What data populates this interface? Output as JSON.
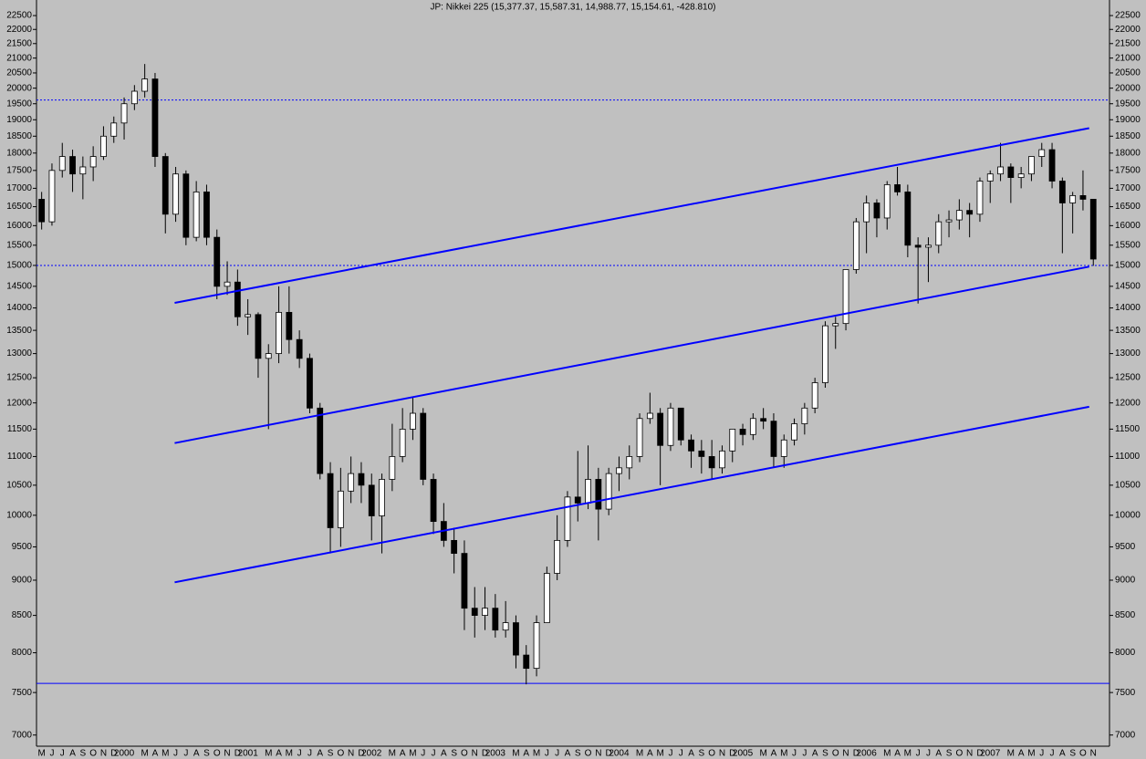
{
  "chart_data": {
    "type": "candlestick",
    "title": "JP: Nikkei 225 (15,377.37, 15,587.31, 14,988.77, 15,154.61, -428.810)",
    "log_scale": true,
    "grid": false,
    "up_color": "#ffffff",
    "down_color": "#000000",
    "line_color": "#0000ff",
    "ylim": [
      6874,
      23076
    ],
    "yticks": [
      7000,
      7500,
      8000,
      8500,
      9000,
      9500,
      10000,
      10500,
      11000,
      11500,
      12000,
      12500,
      13000,
      13500,
      14000,
      14500,
      15000,
      15500,
      16000,
      16500,
      17000,
      17500,
      18000,
      18500,
      19000,
      19500,
      20000,
      20500,
      21000,
      21500,
      22000,
      22500
    ],
    "categories": [
      "M",
      "J",
      "J",
      "A",
      "S",
      "O",
      "N",
      "D",
      "2000",
      null,
      "M",
      "A",
      "M",
      "J",
      "J",
      "A",
      "S",
      "O",
      "N",
      "D",
      "2001",
      null,
      "M",
      "A",
      "M",
      "J",
      "J",
      "A",
      "S",
      "O",
      "N",
      "D",
      "2002",
      null,
      "M",
      "A",
      "M",
      "J",
      "J",
      "A",
      "S",
      "O",
      "N",
      "D",
      "2003",
      null,
      "M",
      "A",
      "M",
      "J",
      "J",
      "A",
      "S",
      "O",
      "N",
      "D",
      "2004",
      null,
      "M",
      "A",
      "M",
      "J",
      "J",
      "A",
      "S",
      "O",
      "N",
      "D",
      "2005",
      null,
      "M",
      "A",
      "M",
      "J",
      "J",
      "A",
      "S",
      "O",
      "N",
      "D",
      "2006",
      null,
      "M",
      "A",
      "M",
      "J",
      "J",
      "A",
      "S",
      "O",
      "N",
      "D",
      "2007",
      null,
      "M",
      "A",
      "M",
      "J",
      "J",
      "A",
      "S",
      "O",
      "N"
    ],
    "open": [
      16700,
      16100,
      17500,
      17900,
      17400,
      17600,
      17900,
      18500,
      18900,
      19500,
      19900,
      20300,
      17900,
      16300,
      17400,
      15700,
      16900,
      15700,
      14500,
      14600,
      13800,
      13850,
      12900,
      13000,
      13900,
      13300,
      12900,
      11900,
      10700,
      9800,
      10400,
      10700,
      10500,
      9990,
      10600,
      11000,
      11500,
      11800,
      10600,
      9900,
      9600,
      9400,
      8600,
      8500,
      8600,
      8300,
      8400,
      7970,
      7800,
      8400,
      9100,
      9600,
      10300,
      10200,
      10600,
      10100,
      10700,
      10800,
      11000,
      11700,
      11800,
      11200,
      11900,
      11300,
      11100,
      11000,
      10800,
      11100,
      11500,
      11400,
      11700,
      11650,
      11000,
      11300,
      11600,
      11900,
      12400,
      13600,
      13650,
      14900,
      16100,
      16600,
      16200,
      17100,
      16900,
      15500,
      15450,
      15500,
      16100,
      16150,
      16400,
      16300,
      17200,
      17400,
      17600,
      17300,
      17400,
      17900,
      18100,
      17200,
      16600,
      16800,
      16700
    ],
    "high": [
      16900,
      17700,
      18300,
      18100,
      17900,
      18200,
      18800,
      19100,
      19700,
      20100,
      20800,
      20500,
      18000,
      17600,
      17500,
      17200,
      17100,
      15900,
      15100,
      14900,
      14200,
      13900,
      13200,
      14500,
      14500,
      13500,
      13000,
      12000,
      10900,
      10800,
      11000,
      10900,
      10700,
      10700,
      11600,
      11900,
      12100,
      11900,
      10700,
      10200,
      9800,
      9600,
      8900,
      8900,
      8800,
      8700,
      8500,
      8100,
      8500,
      9200,
      10000,
      10400,
      11100,
      11200,
      10800,
      10800,
      11000,
      11200,
      11800,
      12200,
      11900,
      12000,
      11900,
      11400,
      11300,
      11300,
      11200,
      11500,
      11600,
      11800,
      11900,
      11800,
      11400,
      11700,
      12000,
      12500,
      13700,
      13800,
      14900,
      16200,
      16800,
      16700,
      17200,
      17600,
      17100,
      15700,
      15700,
      16300,
      16400,
      16700,
      16600,
      17300,
      17500,
      18300,
      17700,
      17600,
      17900,
      18300,
      18300,
      17300,
      16900,
      17500,
      16700
    ],
    "low": [
      15900,
      16000,
      17300,
      16900,
      16700,
      17200,
      17800,
      18300,
      18400,
      19300,
      19700,
      17600,
      15800,
      16100,
      15500,
      15600,
      15500,
      14200,
      14300,
      13600,
      13400,
      12500,
      11500,
      12800,
      13000,
      12700,
      11800,
      10600,
      9400,
      9500,
      10200,
      10200,
      9600,
      9400,
      10400,
      10900,
      11300,
      10500,
      9700,
      9500,
      9100,
      8300,
      8200,
      8300,
      8200,
      8200,
      7800,
      7600,
      7700,
      8400,
      9000,
      9500,
      9900,
      10100,
      9600,
      10000,
      10400,
      10600,
      10900,
      11600,
      10500,
      11100,
      11200,
      10800,
      10700,
      10600,
      10700,
      10900,
      11200,
      11300,
      11500,
      10800,
      10800,
      11200,
      11400,
      11800,
      12300,
      13100,
      13500,
      14800,
      15300,
      15700,
      15900,
      16800,
      15200,
      14100,
      14600,
      15300,
      15700,
      15900,
      15700,
      16100,
      16600,
      17200,
      16600,
      17000,
      17200,
      17600,
      17000,
      15300,
      15800,
      16400,
      14990
    ],
    "close": [
      16100,
      17500,
      17900,
      17400,
      17600,
      17900,
      18500,
      18900,
      19500,
      19900,
      20300,
      17900,
      16300,
      17400,
      15700,
      16900,
      15700,
      14500,
      14600,
      13800,
      13850,
      12900,
      13000,
      13900,
      13300,
      12900,
      11900,
      10700,
      9800,
      10400,
      10700,
      10500,
      9990,
      10600,
      11000,
      11500,
      11800,
      10600,
      9900,
      9600,
      9400,
      8600,
      8500,
      8600,
      8300,
      8400,
      7970,
      7800,
      8400,
      9100,
      9600,
      10300,
      10200,
      10600,
      10100,
      10700,
      10800,
      11000,
      11700,
      11800,
      11200,
      11900,
      11300,
      11100,
      11000,
      10800,
      11100,
      11500,
      11400,
      11700,
      11650,
      11000,
      11300,
      11600,
      11900,
      12400,
      13600,
      13650,
      14900,
      16100,
      16600,
      16200,
      17100,
      16900,
      15500,
      15450,
      15500,
      16100,
      16150,
      16400,
      16300,
      17200,
      17400,
      17600,
      17300,
      17400,
      17900,
      18100,
      17200,
      16600,
      16800,
      16700,
      15155
    ],
    "trendlines": [
      {
        "x": [
          12.9,
          101.6
        ],
        "values": [
          14115,
          18743
        ]
      },
      {
        "x": [
          12.9,
          101.6
        ],
        "values": [
          11243,
          14970
        ]
      },
      {
        "x": [
          12.9,
          101.6
        ],
        "values": [
          8969,
          11925
        ]
      }
    ],
    "hlines": [
      {
        "value": 19620,
        "style": "dotted"
      },
      {
        "value": 15000,
        "style": "dotted"
      },
      {
        "value": 7612,
        "style": "solid"
      }
    ]
  }
}
